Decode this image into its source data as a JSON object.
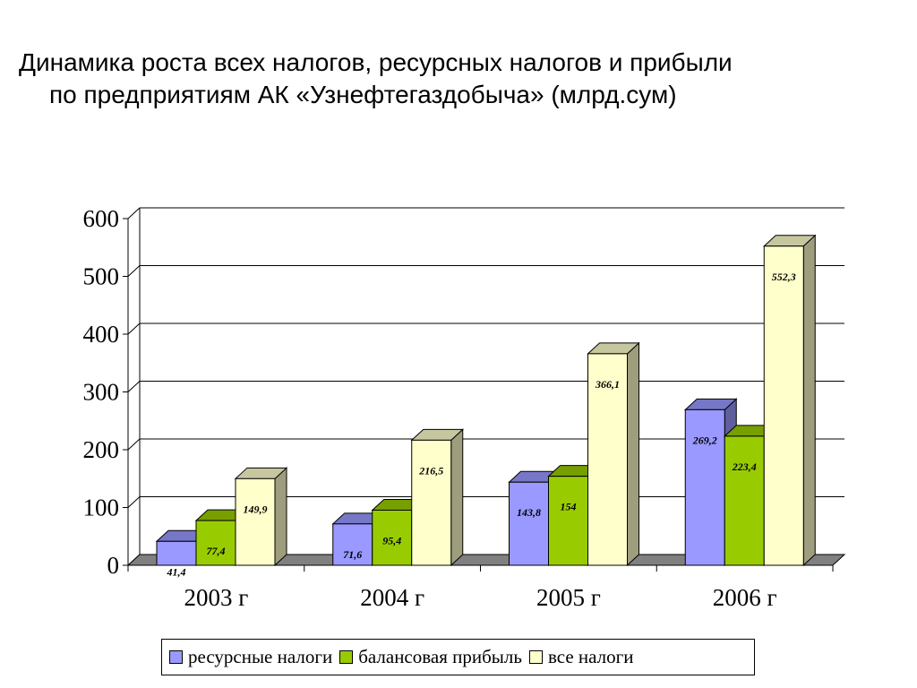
{
  "title": {
    "line1": "Динамика роста всех налогов, ресурсных налогов и прибыли",
    "line2": "по предприятиям АК «Узнефтегаздобыча» (млрд.сум)"
  },
  "chart_data": {
    "type": "bar",
    "title": "Динамика роста всех налогов, ресурсных налогов и прибыли по предприятиям АК «Узнефтегаздобыча» (млрд.сум)",
    "categories": [
      "2003 г",
      "2004 г",
      "2005 г",
      "2006 г"
    ],
    "series": [
      {
        "name": "ресурсные налоги",
        "values": [
          41.4,
          71.6,
          143.8,
          269.2
        ],
        "labels": [
          "41,4",
          "71,6",
          "143,8",
          "269,2"
        ],
        "color": "#9999ff"
      },
      {
        "name": "балансовая прибыль",
        "values": [
          77.4,
          95.4,
          154,
          223.4
        ],
        "labels": [
          "77,4",
          "95,4",
          "154",
          "223,4"
        ],
        "color": "#99cc00"
      },
      {
        "name": "все налоги",
        "values": [
          149.9,
          216.5,
          366.1,
          552.3
        ],
        "labels": [
          "149,9",
          "216,5",
          "366,1",
          "552,3"
        ],
        "color": "#ffffcc"
      }
    ],
    "yticks": [
      "0",
      "100",
      "200",
      "300",
      "400",
      "500",
      "600"
    ],
    "ylim": [
      0,
      600
    ],
    "xlabel": "",
    "ylabel": "",
    "grid": true,
    "three_d": true,
    "legend_position": "bottom"
  }
}
